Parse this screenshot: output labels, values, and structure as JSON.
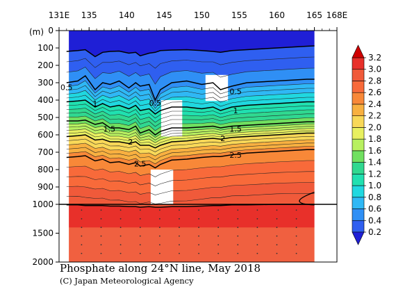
{
  "chart_data": {
    "type": "heatmap",
    "title": "Phosphate along 24°N line, May 2018",
    "credit": "(C) Japan Meteorological Agency",
    "xlabel": "",
    "ylabel": "(m)",
    "x_ticks": [
      "131E",
      "135",
      "140",
      "145",
      "150",
      "155",
      "160",
      "165",
      "168E"
    ],
    "x_tick_values": [
      131,
      135,
      140,
      145,
      150,
      155,
      160,
      165,
      168
    ],
    "xlim": [
      131,
      168
    ],
    "y_ticks_upper": [
      "0",
      "100",
      "200",
      "300",
      "400",
      "500",
      "600",
      "700",
      "800",
      "900",
      "1000"
    ],
    "y_ticks_lower": [
      "1500",
      "2000"
    ],
    "y_tick_values": [
      0,
      100,
      200,
      300,
      400,
      500,
      600,
      700,
      800,
      900,
      1000,
      1500,
      2000
    ],
    "ylim": [
      0,
      2000
    ],
    "y_break_depth": 1000,
    "colorbar_levels": [
      "0.2",
      "0.4",
      "0.6",
      "0.8",
      "1.0",
      "1.2",
      "1.4",
      "1.6",
      "1.8",
      "2.0",
      "2.2",
      "2.4",
      "2.6",
      "2.8",
      "3.0",
      "3.2"
    ],
    "colors": [
      "#1f1fd6",
      "#2f5ff0",
      "#2f8ff5",
      "#2fb8f5",
      "#20d8e0",
      "#20e0b0",
      "#30d890",
      "#70e060",
      "#b8f060",
      "#e8f060",
      "#f8d858",
      "#f8b040",
      "#f88838",
      "#f86a3a",
      "#f05a3a",
      "#e8302a",
      "#d00000"
    ],
    "contour_labels": [
      {
        "text": "0.5",
        "lon": 132,
        "depth": 325
      },
      {
        "text": "0.5",
        "lon": 143.8,
        "depth": 415
      },
      {
        "text": "0.5",
        "lon": 154.5,
        "depth": 350
      },
      {
        "text": "1",
        "lon": 135.8,
        "depth": 420
      },
      {
        "text": "1",
        "lon": 154.5,
        "depth": 460
      },
      {
        "text": "1.5",
        "lon": 137.7,
        "depth": 565
      },
      {
        "text": "1.5",
        "lon": 154.5,
        "depth": 565
      },
      {
        "text": "2",
        "lon": 140.5,
        "depth": 640
      },
      {
        "text": "2",
        "lon": 152.8,
        "depth": 620
      },
      {
        "text": "2.5",
        "lon": 141.8,
        "depth": 765
      },
      {
        "text": "2.5",
        "lon": 154.5,
        "depth": 715
      }
    ],
    "contour_levels": [
      0.2,
      0.5,
      1.0,
      1.5,
      2.0,
      2.5,
      3.0
    ],
    "profile_lons": [
      132,
      133.5,
      134.5,
      135.8,
      136.8,
      137.8,
      139,
      140.3,
      141.2,
      141.8,
      143,
      143.8,
      144.5,
      146,
      148,
      150,
      151.5,
      152.5,
      154,
      156,
      158,
      160,
      162,
      164,
      165
    ],
    "isoline_depths": [
      {
        "value": 0.2,
        "depths": [
          120,
          115,
          110,
          150,
          125,
          120,
          118,
          130,
          125,
          145,
          130,
          125,
          115,
          112,
          110,
          115,
          120,
          125,
          115,
          110,
          105,
          100,
          95,
          90,
          88
        ]
      },
      {
        "value": 0.5,
        "depths": [
          300,
          290,
          260,
          340,
          300,
          310,
          290,
          330,
          300,
          320,
          310,
          400,
          340,
          300,
          290,
          310,
          300,
          340,
          320,
          300,
          295,
          290,
          285,
          280,
          280
        ]
      },
      {
        "value": 1.0,
        "depths": [
          410,
          405,
          400,
          440,
          420,
          440,
          430,
          450,
          430,
          460,
          450,
          480,
          460,
          440,
          440,
          450,
          440,
          460,
          440,
          430,
          425,
          420,
          415,
          410,
          410
        ]
      },
      {
        "value": 1.5,
        "depths": [
          520,
          520,
          515,
          540,
          530,
          560,
          560,
          570,
          550,
          590,
          570,
          600,
          580,
          560,
          560,
          555,
          550,
          560,
          550,
          545,
          540,
          535,
          530,
          525,
          525
        ]
      },
      {
        "value": 2.0,
        "depths": [
          610,
          605,
          600,
          630,
          625,
          640,
          640,
          650,
          640,
          660,
          660,
          675,
          660,
          640,
          635,
          625,
          620,
          625,
          615,
          610,
          605,
          600,
          595,
          590,
          590
        ]
      },
      {
        "value": 2.5,
        "depths": [
          730,
          725,
          720,
          750,
          740,
          760,
          755,
          770,
          760,
          780,
          770,
          790,
          770,
          745,
          740,
          730,
          725,
          725,
          715,
          705,
          700,
          695,
          690,
          685,
          685
        ]
      },
      {
        "value": 3.0,
        "depths": [
          1010,
          1010,
          1020,
          1020,
          1020,
          1030,
          1030,
          1040,
          1040,
          1050,
          1040,
          1050,
          1050,
          1040,
          1040,
          1030,
          1020,
          1020,
          1010,
          1010,
          1005,
          1000,
          1000,
          1000,
          1000
        ]
      }
    ],
    "missing_boxes": [
      {
        "lon0": 150.5,
        "lon1": 153.5,
        "d0": 255,
        "d1": 405
      },
      {
        "lon0": 144.6,
        "lon1": 147.4,
        "d0": 400,
        "d1": 610
      },
      {
        "lon0": 143.2,
        "lon1": 146.2,
        "d0": 800,
        "d1": 1000
      },
      {
        "lon0": 165,
        "lon1": 168,
        "d0": 0,
        "d1": 2000
      },
      {
        "lon0": 131,
        "lon1": 132.3,
        "d0": 0,
        "d1": 2000
      }
    ]
  }
}
